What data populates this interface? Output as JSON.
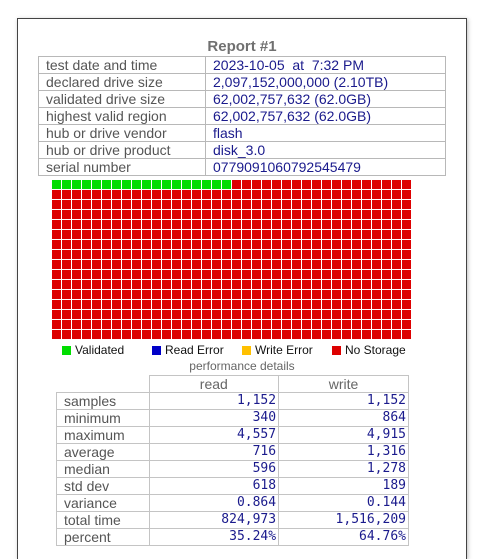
{
  "report": {
    "title": "Report #1",
    "info": [
      {
        "label": "test date and time",
        "value": "2023-10-05  at  7:32 PM"
      },
      {
        "label": "declared drive size",
        "value": "2,097,152,000,000 (2.10TB)"
      },
      {
        "label": "validated drive size",
        "value": "62,002,757,632 (62.0GB)"
      },
      {
        "label": "highest valid region",
        "value": "62,002,757,632 (62.0GB)"
      },
      {
        "label": "hub or drive vendor",
        "value": "flash"
      },
      {
        "label": "hub or drive product",
        "value": "disk_3.0"
      },
      {
        "label": "serial number",
        "value": "0779091060792545479"
      }
    ]
  },
  "drive_map": {
    "columns": 36,
    "rows": 16,
    "validated_cells_first_row": 18,
    "colors": {
      "validated": "#00dd00",
      "read_error": "#0000c8",
      "write_error": "#ffc000",
      "no_storage": "#dd0000"
    }
  },
  "legend": {
    "validated": "Validated",
    "read_error": "Read Error",
    "write_error": "Write Error",
    "no_storage": "No Storage"
  },
  "performance": {
    "title": "performance details",
    "col_read": "read",
    "col_write": "write",
    "rows": [
      {
        "label": "samples",
        "read": "1,152",
        "write": "1,152"
      },
      {
        "label": "minimum",
        "read": "340",
        "write": "864"
      },
      {
        "label": "maximum",
        "read": "4,557",
        "write": "4,915"
      },
      {
        "label": "average",
        "read": "716",
        "write": "1,316"
      },
      {
        "label": "median",
        "read": "596",
        "write": "1,278"
      },
      {
        "label": "std dev",
        "read": "618",
        "write": "189"
      },
      {
        "label": "variance",
        "read": "0.864",
        "write": "0.144"
      },
      {
        "label": "total time",
        "read": "824,973",
        "write": "1,516,209"
      },
      {
        "label": "percent",
        "read": "35.24%",
        "write": "64.76%"
      }
    ]
  }
}
